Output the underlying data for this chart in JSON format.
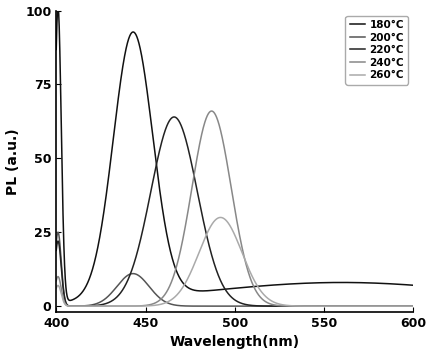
{
  "xlabel": "Wavelength(nm)",
  "ylabel": "PL (a.u.)",
  "xlim": [
    400,
    600
  ],
  "ylim": [
    -2,
    100
  ],
  "yticks": [
    0,
    25,
    50,
    75,
    100
  ],
  "xticks": [
    400,
    450,
    500,
    550,
    600
  ],
  "series": [
    {
      "label": "180°C",
      "color": "#111111",
      "components": [
        {
          "peak": 401,
          "amp": 100,
          "sigma": 1.8
        },
        {
          "peak": 443,
          "amp": 90,
          "sigma": 11
        }
      ]
    },
    {
      "label": "200°C",
      "color": "#555555",
      "components": [
        {
          "peak": 401,
          "amp": 25,
          "sigma": 1.8
        },
        {
          "peak": 443,
          "amp": 11,
          "sigma": 9
        }
      ]
    },
    {
      "label": "220°C",
      "color": "#222222",
      "components": [
        {
          "peak": 401,
          "amp": 22,
          "sigma": 1.8
        },
        {
          "peak": 466,
          "amp": 64,
          "sigma": 13
        }
      ]
    },
    {
      "label": "240°C",
      "color": "#888888",
      "components": [
        {
          "peak": 401,
          "amp": 10,
          "sigma": 1.8
        },
        {
          "peak": 487,
          "amp": 66,
          "sigma": 11
        }
      ]
    },
    {
      "label": "260°C",
      "color": "#aaaaaa",
      "components": [
        {
          "peak": 401,
          "amp": 7,
          "sigma": 1.8
        },
        {
          "peak": 492,
          "amp": 30,
          "sigma": 12
        }
      ]
    }
  ],
  "figsize": [
    4.32,
    3.55
  ],
  "dpi": 100
}
